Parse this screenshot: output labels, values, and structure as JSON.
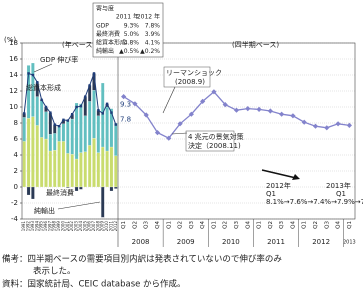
{
  "chart_data": [
    {
      "type": "bar",
      "stacked": true,
      "label": "(年ベース)",
      "y_label": "(%)",
      "categories": [
        "1991",
        "1992",
        "1993",
        "1994",
        "1995",
        "1996",
        "1997",
        "1998",
        "1999",
        "2000",
        "2001",
        "2002",
        "2003",
        "2004",
        "2005",
        "2006",
        "2007",
        "2008",
        "2009",
        "2010",
        "2011",
        "2012"
      ],
      "series": [
        {
          "name": "最終消費",
          "type": "bar",
          "color": "#c9dc6e",
          "values": [
            5.7,
            8.6,
            8.8,
            7.7,
            6.2,
            6.0,
            4.5,
            4.6,
            5.7,
            5.7,
            4.2,
            4.1,
            3.5,
            4.3,
            4.4,
            5.2,
            6.1,
            4.3,
            5.0,
            4.5,
            5.0,
            3.9
          ]
        },
        {
          "name": "総資本形成",
          "type": "bar",
          "color": "#62bfc0",
          "values": [
            3.0,
            6.6,
            6.7,
            3.6,
            4.6,
            3.4,
            2.1,
            2.1,
            1.8,
            2.2,
            4.2,
            4.4,
            7.0,
            6.1,
            4.5,
            5.5,
            6.0,
            4.6,
            8.0,
            5.5,
            4.8,
            4.1
          ]
        },
        {
          "name": "純輸出",
          "type": "bar",
          "color": "#2b3a55",
          "values": [
            0.5,
            -1.0,
            -1.5,
            1.8,
            0.1,
            0.6,
            2.7,
            1.1,
            0.1,
            0.5,
            -0.1,
            0.6,
            -0.5,
            -0.3,
            2.4,
            2.0,
            2.1,
            0.7,
            -3.8,
            0.4,
            -0.5,
            -0.2
          ]
        },
        {
          "name": "GDP 伸び率",
          "type": "line",
          "color": "#1f3d7a",
          "values": [
            9.2,
            14.2,
            14.0,
            13.1,
            10.9,
            10.0,
            9.3,
            7.8,
            7.6,
            8.4,
            8.3,
            9.1,
            10.0,
            10.1,
            11.3,
            12.7,
            14.2,
            9.6,
            9.2,
            10.4,
            9.3,
            7.8
          ]
        }
      ],
      "ylim": [
        -4,
        18
      ],
      "yticks": [
        -4,
        -2,
        0,
        2,
        4,
        6,
        8,
        10,
        12,
        14,
        16,
        18
      ],
      "grid": true
    },
    {
      "type": "line",
      "label": "(四半期ベース)",
      "categories": [
        "Q1",
        "Q2",
        "Q3",
        "Q4",
        "Q1",
        "Q2",
        "Q3",
        "Q4",
        "Q1",
        "Q2",
        "Q3",
        "Q4",
        "Q1",
        "Q2",
        "Q3",
        "Q4",
        "Q1",
        "Q2",
        "Q3",
        "Q4",
        "Q1"
      ],
      "x_groups": [
        "2008",
        "2009",
        "2010",
        "2011",
        "2012",
        "2013"
      ],
      "values": [
        11.3,
        10.4,
        9.0,
        6.8,
        6.1,
        7.9,
        9.1,
        10.7,
        11.9,
        10.3,
        9.6,
        9.8,
        9.7,
        9.5,
        9.1,
        8.9,
        8.1,
        7.6,
        7.4,
        7.9,
        7.7
      ],
      "color": "#8383cc",
      "ylim": [
        -4,
        18
      ],
      "annotations": [
        "リーマンショック",
        "(2008.9)",
        "4 兆元の景気対策",
        "決定（2008.11)",
        "2012年",
        "Q1",
        "2013年",
        "Q1",
        "8.1%→7.6%→7.4%→7.9%→7.7%"
      ]
    }
  ],
  "contribution_table": {
    "title": "寄与度",
    "columns": [
      "2011 年",
      "2012 年"
    ],
    "rows": [
      [
        "GDP",
        "9.3%",
        "7.8%"
      ],
      [
        "最終消費",
        "5.0%",
        "3.9%"
      ],
      [
        "総資本形成",
        "4.8%",
        "4.1%"
      ],
      [
        "純輸出",
        "▲0.5%",
        "▲0.2%"
      ]
    ]
  },
  "notes": [
    "備考：四半期ベースの需要項目別内訳は発表されていないので伸び率のみ",
    "表示した。",
    "資料：国家統計局、CEIC database から作成。"
  ]
}
